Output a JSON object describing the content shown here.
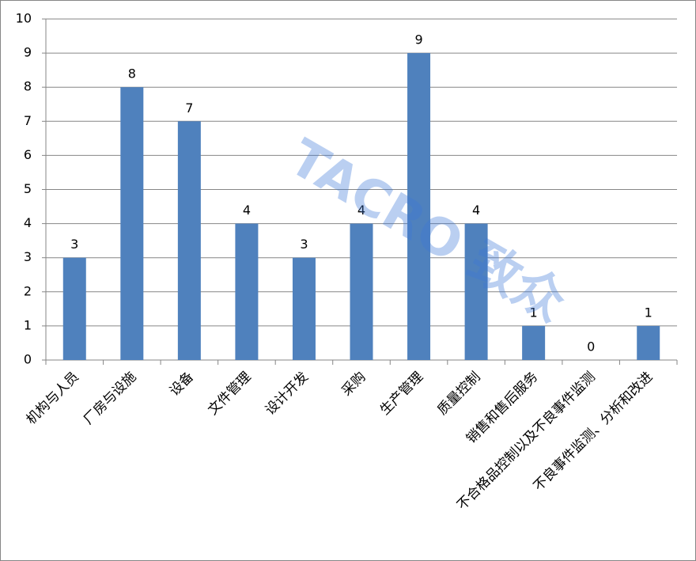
{
  "chart_data": {
    "type": "bar",
    "categories": [
      "机构与人员",
      "厂房与设施",
      "设备",
      "文件管理",
      "设计开发",
      "采购",
      "生产管理",
      "质量控制",
      "销售和售后服务",
      "不合格品控制以及不良事件监测",
      "不良事件监测、分析和改进"
    ],
    "values": [
      3,
      8,
      7,
      4,
      3,
      4,
      9,
      4,
      1,
      0,
      1
    ],
    "color": "#4f81bd",
    "ylim": [
      0,
      10
    ],
    "yticks": [
      0,
      1,
      2,
      3,
      4,
      5,
      6,
      7,
      8,
      9,
      10
    ],
    "grid": true,
    "watermark": "TACRO 致众"
  }
}
